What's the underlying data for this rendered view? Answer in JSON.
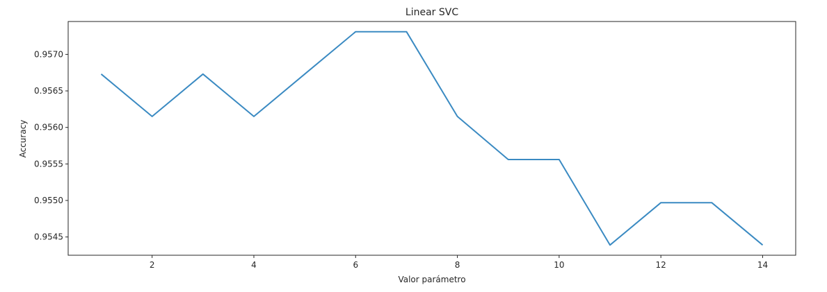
{
  "chart_data": {
    "type": "line",
    "title": "Linear SVC",
    "xlabel": "Valor parámetro",
    "ylabel": "Accuracy",
    "xlim": [
      0.35,
      14.65
    ],
    "ylim": [
      0.95425,
      0.95745
    ],
    "xticks": [
      2,
      4,
      6,
      8,
      10,
      12,
      14
    ],
    "xtick_labels": [
      "2",
      "4",
      "6",
      "8",
      "10",
      "12",
      "14"
    ],
    "yticks": [
      0.9545,
      0.955,
      0.9555,
      0.956,
      0.9565,
      0.957
    ],
    "ytick_labels": [
      "0.9545",
      "0.9550",
      "0.9555",
      "0.9560",
      "0.9565",
      "0.9570"
    ],
    "grid": false,
    "series": [
      {
        "color": "#3a8ac2",
        "x": [
          1,
          2,
          3,
          4,
          5,
          6,
          7,
          8,
          9,
          10,
          11,
          12,
          13,
          14
        ],
        "y": [
          0.95673,
          0.95615,
          0.95673,
          0.95615,
          0.95673,
          0.95731,
          0.95731,
          0.95615,
          0.95556,
          0.95556,
          0.95439,
          0.95497,
          0.95497,
          0.95439
        ]
      }
    ]
  }
}
